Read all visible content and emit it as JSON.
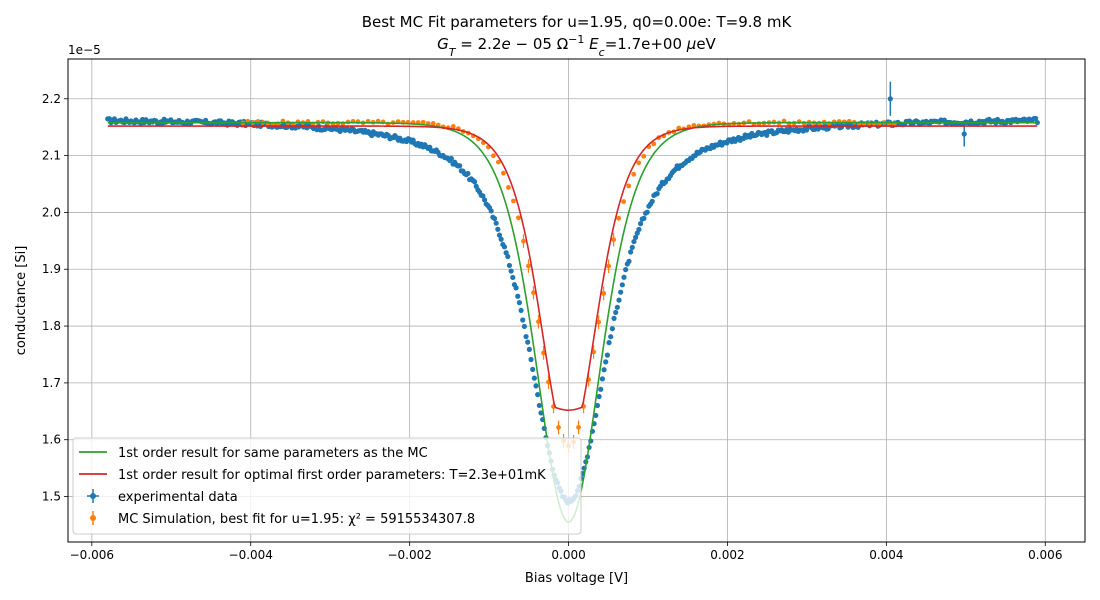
{
  "chart_data": {
    "type": "line",
    "title": "Best MC Fit parameters for u=1.95, q0=0.00e:  T=9.8 mK",
    "subtitle": "G_T = 2.2e − 05 Ω⁻¹ E_c=1.7e+00 μeV",
    "xlabel": "Bias voltage [V]",
    "ylabel": "conductance [Si]",
    "y_offset_label": "1e−5",
    "xlim": [
      -0.0063,
      0.0065
    ],
    "ylim": [
      1.42,
      2.27
    ],
    "y_scale_exponent": -5,
    "x_ticks": [
      -0.006,
      -0.004,
      -0.002,
      0.0,
      0.002,
      0.004,
      0.006
    ],
    "x_tick_labels": [
      "−0.006",
      "−0.004",
      "−0.002",
      "0.000",
      "0.002",
      "0.004",
      "0.006"
    ],
    "y_ticks": [
      1.5,
      1.6,
      1.7,
      1.8,
      1.9,
      2.0,
      2.1,
      2.2
    ],
    "y_tick_labels": [
      "1.5",
      "1.6",
      "1.7",
      "1.8",
      "1.9",
      "2.0",
      "2.1",
      "2.2"
    ],
    "grid": true,
    "legend_position": "lower-left",
    "series": [
      {
        "name": "1st order result for same parameters as the MC",
        "kind": "line",
        "color": "#2ca02c",
        "model": {
          "base": 2.158,
          "depth": 0.703,
          "width": 0.00055,
          "shape": "sech2"
        },
        "x_range": [
          -0.0058,
          0.0059
        ]
      },
      {
        "name": "1st order result for optimal first order parameters: T=2.3e+01mK",
        "kind": "line",
        "color": "#d62728",
        "model": {
          "base": 2.152,
          "depth": 0.562,
          "width": 0.00048,
          "shape": "sech2",
          "round": 0.00012
        },
        "x_range": [
          -0.0058,
          0.0059
        ]
      },
      {
        "name": "experimental data",
        "kind": "errorbar",
        "color": "#1f77b4",
        "model": {
          "base": 2.167,
          "depth": 0.675,
          "width": 0.00058,
          "shape": "lorentz_sech",
          "noise": 0.004
        },
        "x_range": [
          -0.0058,
          0.0059
        ],
        "outliers": [
          {
            "x": 0.00405,
            "y": 2.2,
            "err": 0.03
          },
          {
            "x": 0.00498,
            "y": 2.138,
            "err": 0.022
          }
        ]
      },
      {
        "name": "MC Simulation, best fit for u=1.95:  χ² = 5915534307.8",
        "kind": "errorbar",
        "color": "#ff7f0e",
        "model": {
          "base": 2.158,
          "depth": 0.57,
          "width": 0.00052,
          "shape": "sech2"
        },
        "x_range": [
          -0.0041,
          0.0041
        ]
      }
    ]
  }
}
